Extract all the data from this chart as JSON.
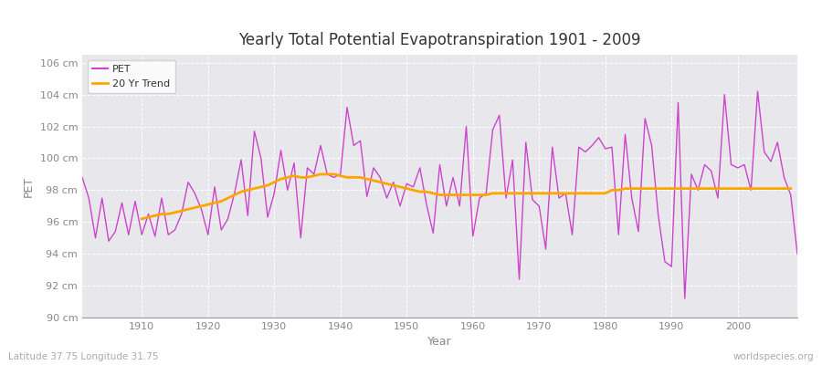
{
  "title": "Yearly Total Potential Evapotranspiration 1901 - 2009",
  "xlabel": "Year",
  "ylabel": "PET",
  "subtitle_left": "Latitude 37.75 Longitude 31.75",
  "subtitle_right": "worldspecies.org",
  "pet_color": "#CC44CC",
  "trend_color": "#FFA500",
  "background_color": "#FFFFFF",
  "plot_bg_color": "#E8E8EC",
  "grid_color": "#FFFFFF",
  "ylim": [
    90,
    106.5
  ],
  "ytick_labels": [
    "90 cm",
    "92 cm",
    "94 cm",
    "96 cm",
    "98 cm",
    "100 cm",
    "102 cm",
    "104 cm",
    "106 cm"
  ],
  "ytick_values": [
    90,
    92,
    94,
    96,
    98,
    100,
    102,
    104,
    106
  ],
  "years": [
    1901,
    1902,
    1903,
    1904,
    1905,
    1906,
    1907,
    1908,
    1909,
    1910,
    1911,
    1912,
    1913,
    1914,
    1915,
    1916,
    1917,
    1918,
    1919,
    1920,
    1921,
    1922,
    1923,
    1924,
    1925,
    1926,
    1927,
    1928,
    1929,
    1930,
    1931,
    1932,
    1933,
    1934,
    1935,
    1936,
    1937,
    1938,
    1939,
    1940,
    1941,
    1942,
    1943,
    1944,
    1945,
    1946,
    1947,
    1948,
    1949,
    1950,
    1951,
    1952,
    1953,
    1954,
    1955,
    1956,
    1957,
    1958,
    1959,
    1960,
    1961,
    1962,
    1963,
    1964,
    1965,
    1966,
    1967,
    1968,
    1969,
    1970,
    1971,
    1972,
    1973,
    1974,
    1975,
    1976,
    1977,
    1978,
    1979,
    1980,
    1981,
    1982,
    1983,
    1984,
    1985,
    1986,
    1987,
    1988,
    1989,
    1990,
    1991,
    1992,
    1993,
    1994,
    1995,
    1996,
    1997,
    1998,
    1999,
    2000,
    2001,
    2002,
    2003,
    2004,
    2005,
    2006,
    2007,
    2008,
    2009
  ],
  "pet_values": [
    98.8,
    97.5,
    95.0,
    97.5,
    94.8,
    95.4,
    97.2,
    95.2,
    97.3,
    95.2,
    96.5,
    95.1,
    97.5,
    95.2,
    95.5,
    96.5,
    98.5,
    97.8,
    96.8,
    95.2,
    98.2,
    95.5,
    96.2,
    97.8,
    99.9,
    96.4,
    101.7,
    100.0,
    96.3,
    97.8,
    100.5,
    98.0,
    99.7,
    95.0,
    99.4,
    99.0,
    100.8,
    99.0,
    98.8,
    99.0,
    103.2,
    100.8,
    101.1,
    97.6,
    99.4,
    98.8,
    97.5,
    98.5,
    97.0,
    98.4,
    98.2,
    99.4,
    97.1,
    95.3,
    99.6,
    97.0,
    98.8,
    97.0,
    102.0,
    95.1,
    97.5,
    97.8,
    101.8,
    102.7,
    97.5,
    99.9,
    92.4,
    101.0,
    97.4,
    97.0,
    94.3,
    100.7,
    97.5,
    97.8,
    95.2,
    100.7,
    100.4,
    100.8,
    101.3,
    100.6,
    100.7,
    95.2,
    101.5,
    97.5,
    95.4,
    102.5,
    100.8,
    96.4,
    93.5,
    93.2,
    103.5,
    91.2,
    99.0,
    98.0,
    99.6,
    99.2,
    97.5,
    104.0,
    99.6,
    99.4,
    99.6,
    98.0,
    104.2,
    100.4,
    99.8,
    101.0,
    98.8,
    97.7,
    94.0
  ],
  "trend_values_years": [
    1910,
    1911,
    1912,
    1913,
    1914,
    1915,
    1916,
    1917,
    1918,
    1919,
    1920,
    1921,
    1922,
    1923,
    1924,
    1925,
    1926,
    1927,
    1928,
    1929,
    1930,
    1931,
    1932,
    1933,
    1934,
    1935,
    1936,
    1937,
    1938,
    1939,
    1940,
    1941,
    1942,
    1943,
    1944,
    1945,
    1946,
    1947,
    1948,
    1949,
    1950,
    1951,
    1952,
    1953,
    1954,
    1955,
    1956,
    1957,
    1958,
    1959,
    1960,
    1961,
    1962,
    1963,
    1964,
    1965,
    1966,
    1967,
    1968,
    1969,
    1970,
    1971,
    1972,
    1973,
    1974,
    1975,
    1976,
    1977,
    1978,
    1979,
    1980,
    1981,
    1982,
    1983,
    1984,
    1985,
    1986,
    1987,
    1988,
    1989,
    1990,
    1991,
    1992,
    1993,
    1994,
    1995,
    1996,
    1997,
    1998,
    1999,
    2000,
    2001,
    2002,
    2003,
    2004,
    2005,
    2006,
    2007,
    2008
  ],
  "trend_values": [
    96.2,
    96.3,
    96.4,
    96.5,
    96.5,
    96.6,
    96.7,
    96.8,
    96.9,
    97.0,
    97.1,
    97.2,
    97.3,
    97.5,
    97.7,
    97.9,
    98.0,
    98.1,
    98.2,
    98.3,
    98.5,
    98.7,
    98.8,
    98.9,
    98.8,
    98.8,
    98.9,
    99.0,
    99.0,
    99.0,
    98.9,
    98.8,
    98.8,
    98.8,
    98.7,
    98.6,
    98.5,
    98.4,
    98.3,
    98.2,
    98.1,
    98.0,
    97.9,
    97.9,
    97.8,
    97.7,
    97.7,
    97.7,
    97.7,
    97.7,
    97.7,
    97.7,
    97.7,
    97.8,
    97.8,
    97.8,
    97.8,
    97.8,
    97.8,
    97.8,
    97.8,
    97.8,
    97.8,
    97.8,
    97.8,
    97.8,
    97.8,
    97.8,
    97.8,
    97.8,
    97.8,
    98.0,
    98.0,
    98.1,
    98.1,
    98.1,
    98.1,
    98.1,
    98.1,
    98.1,
    98.1,
    98.1,
    98.1,
    98.1,
    98.1,
    98.1,
    98.1,
    98.1,
    98.1,
    98.1,
    98.1,
    98.1,
    98.1,
    98.1,
    98.1,
    98.1,
    98.1,
    98.1,
    98.1
  ]
}
